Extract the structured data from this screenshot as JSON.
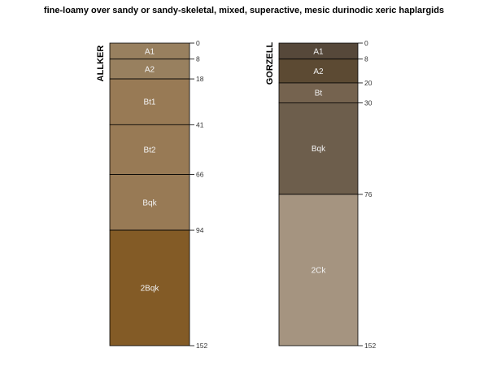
{
  "title": "fine-loamy over sandy or sandy-skeletal, mixed, superactive, mesic durinodic xeric haplargids",
  "depth_max": 152,
  "profiles": [
    {
      "name": "ALLKER",
      "horizons": [
        {
          "label": "A1",
          "top": 0,
          "bottom": 8,
          "color": "#98805F"
        },
        {
          "label": "A2",
          "top": 8,
          "bottom": 18,
          "color": "#98805F"
        },
        {
          "label": "Bt1",
          "top": 18,
          "bottom": 41,
          "color": "#987A55"
        },
        {
          "label": "Bt2",
          "top": 41,
          "bottom": 66,
          "color": "#987A55"
        },
        {
          "label": "Bqk",
          "top": 66,
          "bottom": 94,
          "color": "#987A55"
        },
        {
          "label": "2Bqk",
          "top": 94,
          "bottom": 152,
          "color": "#835B26"
        }
      ],
      "depth_ticks": [
        0,
        8,
        18,
        41,
        66,
        94,
        152
      ]
    },
    {
      "name": "GORZELL",
      "horizons": [
        {
          "label": "A1",
          "top": 0,
          "bottom": 8,
          "color": "#56483A"
        },
        {
          "label": "A2",
          "top": 8,
          "bottom": 20,
          "color": "#5C4A33"
        },
        {
          "label": "Bt",
          "top": 20,
          "bottom": 30,
          "color": "#75634F"
        },
        {
          "label": "Bqk",
          "top": 30,
          "bottom": 76,
          "color": "#6D5E4C"
        },
        {
          "label": "2Ck",
          "top": 76,
          "bottom": 152,
          "color": "#A59480"
        }
      ],
      "depth_ticks": [
        0,
        8,
        20,
        30,
        76,
        152
      ]
    }
  ]
}
